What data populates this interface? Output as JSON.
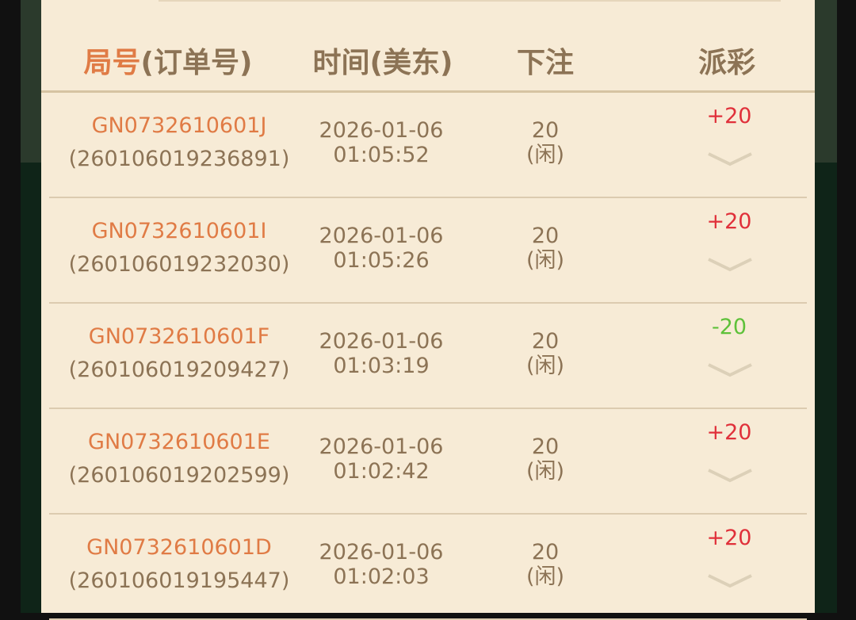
{
  "header": {
    "col1_main": "局号",
    "col1_sub": "(订单号)",
    "col2": "时间(美东)",
    "col3": "下注",
    "col4": "派彩"
  },
  "colors": {
    "accent": "#e07b45",
    "text": "#8c7355",
    "win": "#e0303a",
    "loss": "#5ec13a",
    "panel": "#f7ebd6"
  },
  "rows": [
    {
      "game_id": "GN0732610601J",
      "order_id": "(260106019236891)",
      "date": "2026-01-06",
      "time": "01:05:52",
      "bet": "20",
      "side": "(闲)",
      "payout": "+20",
      "payout_type": "pos",
      "expand_icon": "chevron-down-icon"
    },
    {
      "game_id": "GN0732610601I",
      "order_id": "(260106019232030)",
      "date": "2026-01-06",
      "time": "01:05:26",
      "bet": "20",
      "side": "(闲)",
      "payout": "+20",
      "payout_type": "pos",
      "expand_icon": "chevron-down-icon"
    },
    {
      "game_id": "GN0732610601F",
      "order_id": "(260106019209427)",
      "date": "2026-01-06",
      "time": "01:03:19",
      "bet": "20",
      "side": "(闲)",
      "payout": "-20",
      "payout_type": "neg",
      "expand_icon": "chevron-down-icon"
    },
    {
      "game_id": "GN0732610601E",
      "order_id": "(260106019202599)",
      "date": "2026-01-06",
      "time": "01:02:42",
      "bet": "20",
      "side": "(闲)",
      "payout": "+20",
      "payout_type": "pos",
      "expand_icon": "chevron-down-icon"
    },
    {
      "game_id": "GN0732610601D",
      "order_id": "(260106019195447)",
      "date": "2026-01-06",
      "time": "01:02:03",
      "bet": "20",
      "side": "(闲)",
      "payout": "+20",
      "payout_type": "pos",
      "expand_icon": "chevron-down-icon"
    }
  ]
}
